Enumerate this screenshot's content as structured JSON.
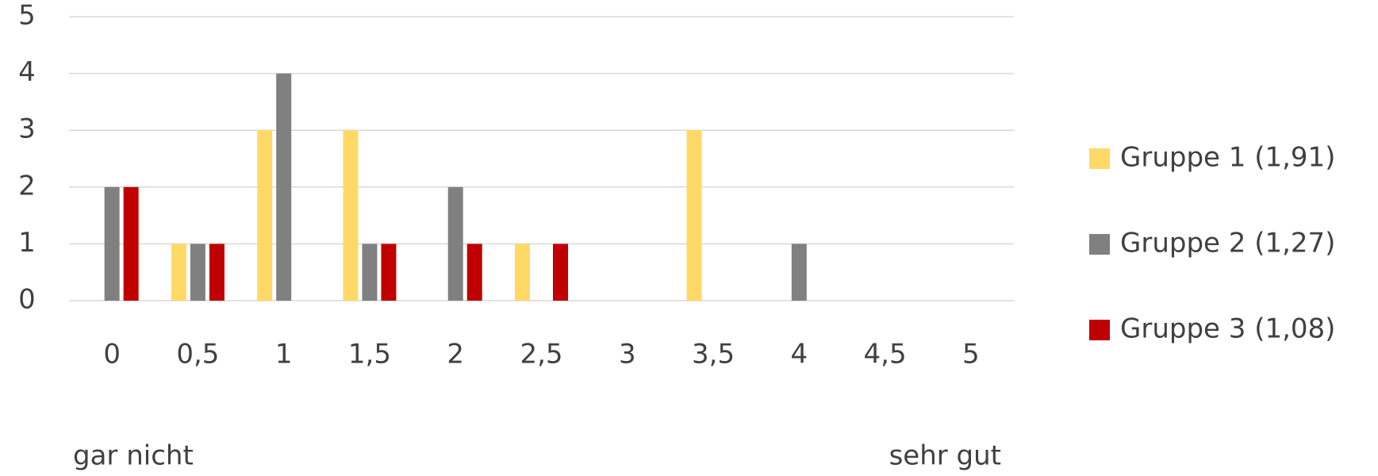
{
  "chart_data": {
    "type": "bar",
    "categories": [
      "0",
      "0,5",
      "1",
      "1,5",
      "2",
      "2,5",
      "3",
      "3,5",
      "4",
      "4,5",
      "5"
    ],
    "series": [
      {
        "name": "Gruppe 1 (1,91)",
        "color": "#FFD966",
        "values": [
          0,
          1,
          3,
          3,
          0,
          1,
          0,
          3,
          0,
          0,
          0
        ]
      },
      {
        "name": "Gruppe 2 (1,27)",
        "color": "#808080",
        "values": [
          2,
          1,
          4,
          1,
          2,
          0,
          0,
          0,
          1,
          0,
          0
        ]
      },
      {
        "name": "Gruppe 3 (1,08)",
        "color": "#C00000",
        "values": [
          2,
          1,
          0,
          1,
          1,
          1,
          0,
          0,
          0,
          0,
          0
        ]
      }
    ],
    "ylim": [
      0,
      5
    ],
    "yticks": [
      0,
      1,
      2,
      3,
      4,
      5
    ],
    "grid": true,
    "legend": "right",
    "annotations": [
      "gar nicht",
      "sehr gut"
    ]
  }
}
